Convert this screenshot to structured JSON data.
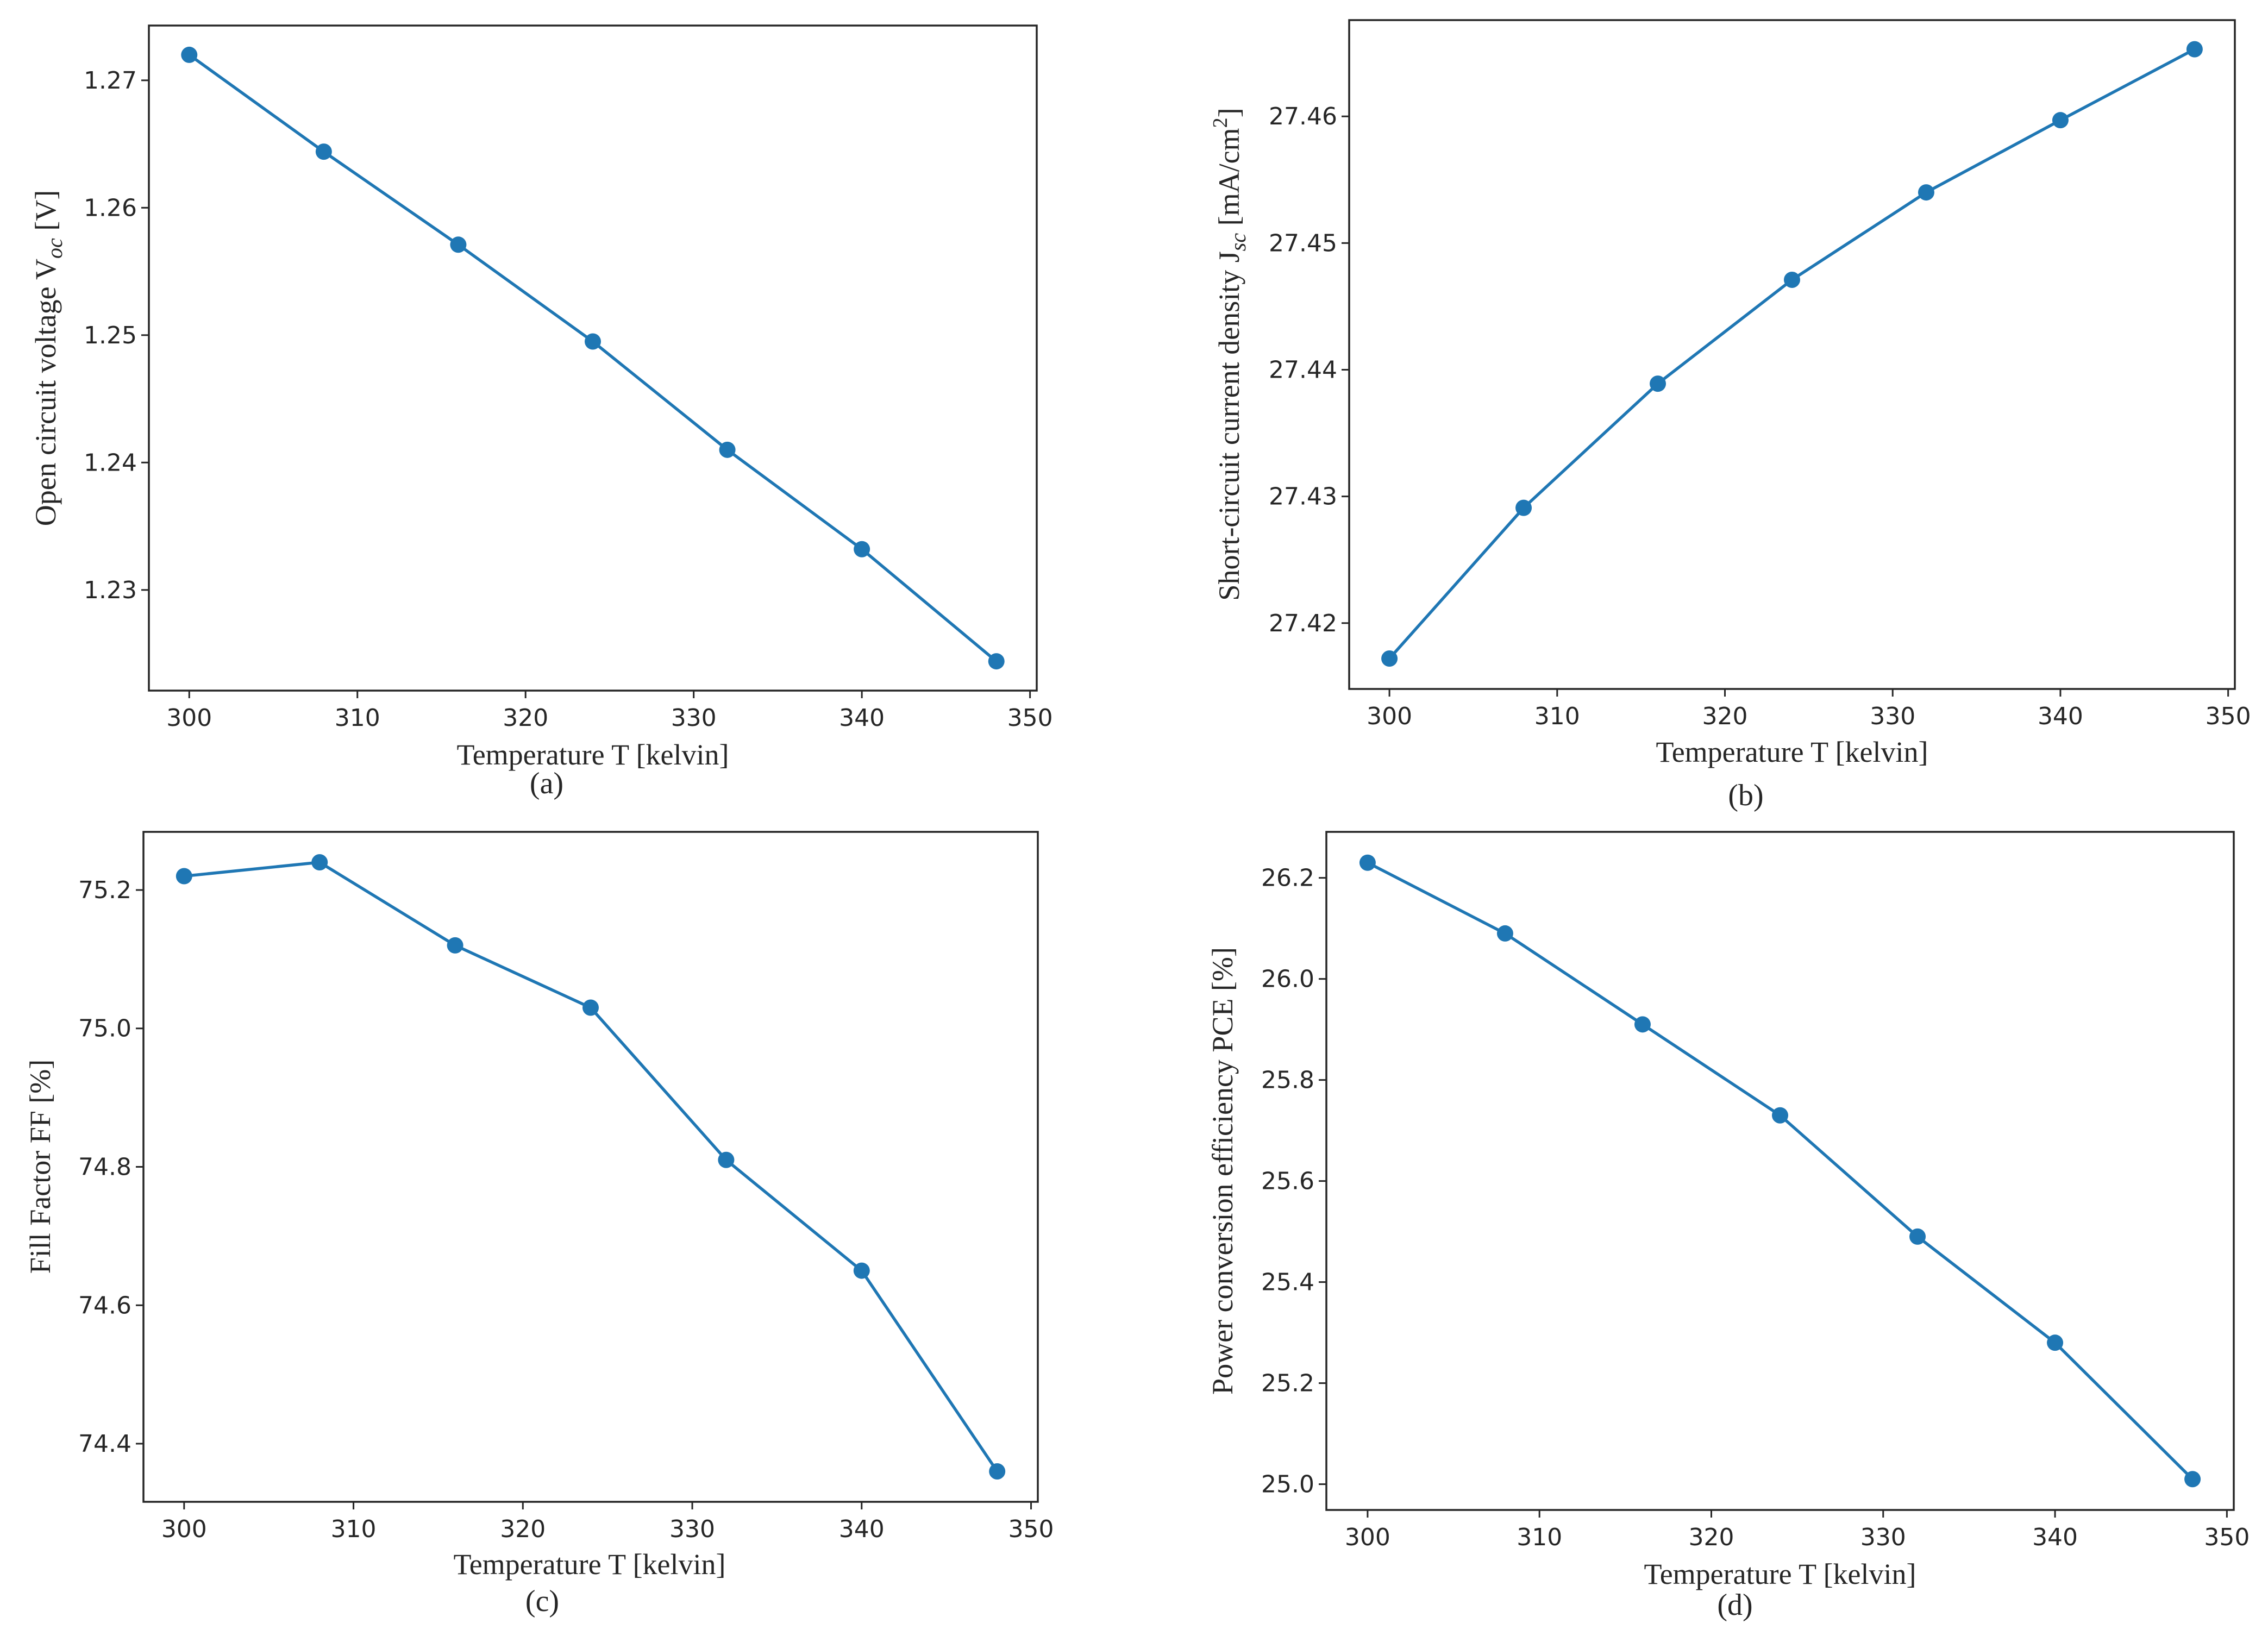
{
  "figure": {
    "colors": {
      "series": "#1f77b4",
      "axes": "#262626"
    }
  },
  "chart_data": [
    {
      "type": "line",
      "panel": "(a)",
      "xlabel": "Temperature T [kelvin]",
      "ylabel": "Open circuit voltage V",
      "ylabel_sub": "oc",
      "ylabel_tail": " [V]",
      "x": [
        300,
        308,
        316,
        324,
        332,
        340,
        348
      ],
      "series": [
        {
          "name": "Voc",
          "values": [
            1.272,
            1.2644,
            1.2571,
            1.2495,
            1.241,
            1.2332,
            1.2244
          ]
        }
      ],
      "xlim": [
        297.6,
        350.4
      ],
      "ylim": [
        1.2221,
        1.2743
      ],
      "xticks": [
        300,
        310,
        320,
        330,
        340,
        350
      ],
      "xtick_labels": [
        "300",
        "310",
        "320",
        "330",
        "340",
        "350"
      ],
      "yticks": [
        1.23,
        1.24,
        1.25,
        1.26,
        1.27
      ],
      "ytick_labels": [
        "1.23",
        "1.24",
        "1.25",
        "1.26",
        "1.27"
      ]
    },
    {
      "type": "line",
      "panel": "(b)",
      "xlabel": "Temperature T [kelvin]",
      "ylabel": "Short-circuit current density J",
      "ylabel_sub": "sc",
      "ylabel_tail": " [mA/cm",
      "ylabel_sup": "2",
      "ylabel_end": "]",
      "x": [
        300,
        308,
        316,
        324,
        332,
        340,
        348
      ],
      "series": [
        {
          "name": "Jsc",
          "values": [
            27.4172,
            27.4291,
            27.4389,
            27.4471,
            27.454,
            27.4597,
            27.4653
          ]
        }
      ],
      "xlim": [
        297.6,
        350.4
      ],
      "ylim": [
        27.4148,
        27.4676
      ],
      "xticks": [
        300,
        310,
        320,
        330,
        340,
        350
      ],
      "xtick_labels": [
        "300",
        "310",
        "320",
        "330",
        "340",
        "350"
      ],
      "yticks": [
        27.42,
        27.43,
        27.44,
        27.45,
        27.46
      ],
      "ytick_labels": [
        "27.42",
        "27.43",
        "27.44",
        "27.45",
        "27.46"
      ]
    },
    {
      "type": "line",
      "panel": "(c)",
      "xlabel": "Temperature T [kelvin]",
      "ylabel": "Fill Factor FF [%]",
      "x": [
        300,
        308,
        316,
        324,
        332,
        340,
        348
      ],
      "series": [
        {
          "name": "FF",
          "values": [
            75.22,
            75.24,
            75.12,
            75.03,
            74.81,
            74.65,
            74.36
          ]
        }
      ],
      "xlim": [
        297.6,
        350.4
      ],
      "ylim": [
        74.316,
        75.284
      ],
      "xticks": [
        300,
        310,
        320,
        330,
        340,
        350
      ],
      "xtick_labels": [
        "300",
        "310",
        "320",
        "330",
        "340",
        "350"
      ],
      "yticks": [
        74.4,
        74.6,
        74.8,
        75.0,
        75.2
      ],
      "ytick_labels": [
        "74.4",
        "74.6",
        "74.8",
        "75.0",
        "75.2"
      ]
    },
    {
      "type": "line",
      "panel": "(d)",
      "xlabel": "Temperature T [kelvin]",
      "ylabel": "Power conversion efficiency PCE [%]",
      "x": [
        300,
        308,
        316,
        324,
        332,
        340,
        348
      ],
      "series": [
        {
          "name": "PCE",
          "values": [
            26.23,
            26.09,
            25.91,
            25.73,
            25.49,
            25.28,
            25.01
          ]
        }
      ],
      "xlim": [
        297.6,
        350.4
      ],
      "ylim": [
        24.949,
        26.291
      ],
      "xticks": [
        300,
        310,
        320,
        330,
        340,
        350
      ],
      "xtick_labels": [
        "300",
        "310",
        "320",
        "330",
        "340",
        "350"
      ],
      "yticks": [
        25.0,
        25.2,
        25.4,
        25.6,
        25.8,
        26.0,
        26.2
      ],
      "ytick_labels": [
        "25.0",
        "25.2",
        "25.4",
        "25.6",
        "25.8",
        "26.0",
        "26.2"
      ]
    }
  ]
}
